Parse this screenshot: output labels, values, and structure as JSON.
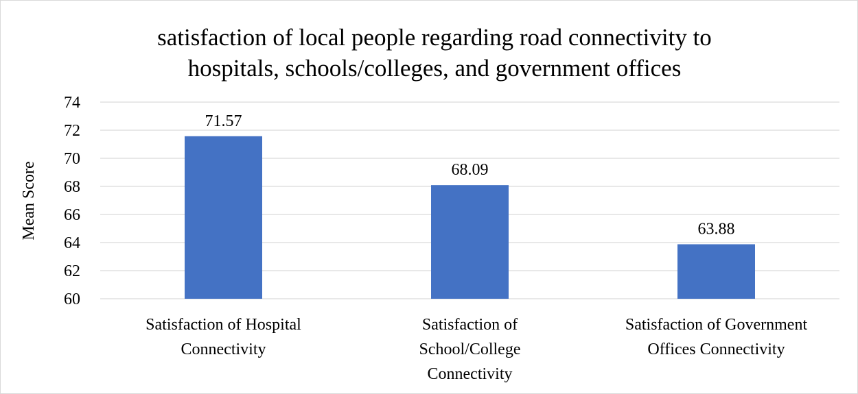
{
  "chart_data": {
    "type": "bar",
    "title_lines": [
      "satisfaction of local people regarding road connectivity to",
      "hospitals, schools/colleges, and government offices"
    ],
    "ylabel": "Mean Score",
    "xlabel": "",
    "ylim": [
      60,
      74
    ],
    "ytick_step": 2,
    "grid": true,
    "legend": "none",
    "bar_color": "#4472C4",
    "gridline_color": "#d9d9d9",
    "categories": [
      [
        "Satisfaction of Hospital",
        "Connectivity"
      ],
      [
        "Satisfaction of",
        "School/College",
        "Connectivity"
      ],
      [
        "Satisfaction of Government",
        "Offices Connectivity"
      ]
    ],
    "values": [
      71.57,
      68.09,
      63.88
    ],
    "value_labels": [
      "71.57",
      "68.09",
      "63.88"
    ]
  }
}
